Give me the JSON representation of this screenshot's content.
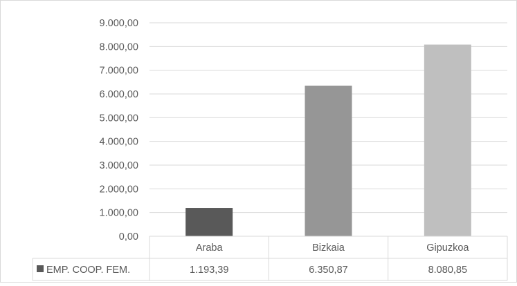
{
  "chart_data": {
    "type": "bar",
    "title": "",
    "xlabel": "",
    "ylabel": "",
    "categories": [
      "Araba",
      "Bizkaia",
      "Gipuzkoa"
    ],
    "series": [
      {
        "name": "EMP. COOP. FEM.",
        "values": [
          1193.39,
          6350.87,
          8080.85
        ],
        "value_labels": [
          "1.193,39",
          "6.350,87",
          "8.080,85"
        ],
        "colors": [
          "#595959",
          "#969696",
          "#bfbfbf"
        ]
      }
    ],
    "ylim": [
      0,
      9000
    ],
    "yticks": [
      0,
      1000,
      2000,
      3000,
      4000,
      5000,
      6000,
      7000,
      8000,
      9000
    ],
    "ytick_labels": [
      "0,00",
      "1.000,00",
      "2.000,00",
      "3.000,00",
      "4.000,00",
      "5.000,00",
      "6.000,00",
      "7.000,00",
      "8.000,00",
      "9.000,00"
    ],
    "grid": true,
    "legend_placement": "data-table",
    "legend_key_color": "#595959"
  }
}
